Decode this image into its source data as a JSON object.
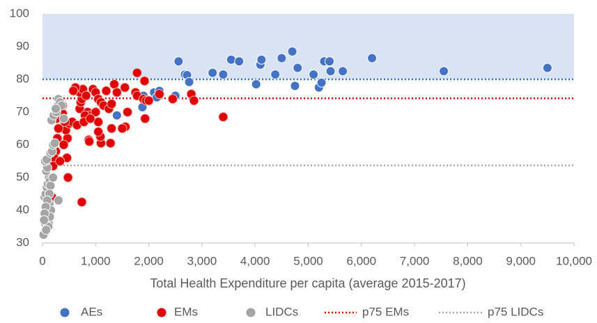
{
  "chart_data": {
    "type": "scatter",
    "x_label": "Total Health Expenditure per capita (average 2015-2017)",
    "xlim": [
      0,
      10000
    ],
    "xticks": [
      0,
      {
        "value": 1000,
        "label": "1,000"
      },
      {
        "value": 2000,
        "label": "2,000"
      },
      {
        "value": 3000,
        "label": "3,000"
      },
      {
        "value": 4000,
        "label": "4,000"
      },
      {
        "value": 5000,
        "label": "5,000"
      },
      {
        "value": 6000,
        "label": "6,000"
      },
      {
        "value": 7000,
        "label": "7,000"
      },
      {
        "value": 8000,
        "label": "8,000"
      },
      {
        "value": 9000,
        "label": "9,000"
      },
      {
        "value": 10000,
        "label": "10,000"
      }
    ],
    "ylim": [
      30,
      100
    ],
    "yticks": [
      30,
      40,
      50,
      60,
      70,
      80,
      90,
      100
    ],
    "shaded_band": {
      "range": [
        80,
        100
      ],
      "color": "#dae3f3",
      "edge_color": "#2f74c0"
    },
    "series": [
      {
        "name": "AEs",
        "color": "#4472c4",
        "x": [
          2560,
          2680,
          2720,
          2760,
          3200,
          3400,
          3550,
          3700,
          4020,
          4100,
          4120,
          4380,
          4500,
          4700,
          4750,
          4800,
          5100,
          5200,
          5250,
          5300,
          5400,
          5420,
          5650,
          6200,
          7550,
          9500,
          1400,
          1900,
          1880,
          2100,
          2150,
          2200,
          2500
        ],
        "values": [
          85.5,
          81.5,
          81.3,
          79.2,
          82,
          81.5,
          86,
          85.5,
          78.5,
          84.5,
          86,
          81.5,
          86.5,
          88.5,
          78,
          83.5,
          81.5,
          77.5,
          79,
          85.5,
          85.5,
          82.5,
          82.5,
          86.5,
          82.5,
          83.5,
          69,
          75,
          71.5,
          76,
          74.5,
          76.5,
          75
        ]
      },
      {
        "name": "EMs",
        "color": "#e00000",
        "x": [
          1780,
          1920,
          1750,
          1780,
          1900,
          1950,
          2000,
          1930,
          2200,
          2450,
          2800,
          2850,
          3400,
          1550,
          1600,
          1560,
          1500,
          1300,
          1280,
          1100,
          1090,
          1050,
          870,
          880,
          740,
          480,
          460,
          470,
          440,
          500,
          560,
          650,
          700,
          720,
          740,
          700,
          760,
          620,
          580,
          820,
          850,
          900,
          950,
          1000,
          1050,
          1100,
          1150,
          1200,
          1250,
          1300,
          1350,
          1400,
          1000,
          1050,
          800,
          780,
          900,
          350,
          380,
          300,
          280,
          250,
          220,
          200,
          330,
          400,
          150,
          120,
          180,
          260,
          300,
          420,
          380
        ],
        "values": [
          82,
          79.5,
          76,
          75,
          74,
          73.5,
          73.5,
          68,
          75.5,
          74,
          75.5,
          73.5,
          68.5,
          77.5,
          70,
          65.5,
          65,
          65,
          60.5,
          60.5,
          62.5,
          64,
          61.5,
          61,
          42.5,
          50,
          56,
          62,
          64.5,
          66.5,
          67,
          66,
          71,
          73,
          74,
          76,
          77,
          77.5,
          76.5,
          75,
          70,
          69,
          77,
          76,
          74,
          73,
          72,
          76.5,
          71,
          72.5,
          78.5,
          76,
          70,
          67,
          69,
          67,
          68,
          70,
          72,
          65,
          62,
          58,
          56,
          53.5,
          55,
          60,
          40,
          38,
          44,
          68,
          72,
          67,
          69.5
        ]
      },
      {
        "name": "LIDCs",
        "color": "#a5a5a5",
        "x": [
          20,
          50,
          60,
          80,
          100,
          120,
          70,
          90,
          110,
          130,
          40,
          60,
          80,
          100,
          120,
          140,
          70,
          90,
          50,
          80,
          150,
          180,
          200,
          230,
          170,
          210,
          260,
          300,
          330,
          360,
          300,
          150,
          130,
          160,
          140,
          110,
          70,
          200,
          90,
          60,
          40,
          30,
          250,
          400
        ],
        "values": [
          32.5,
          36,
          37,
          38,
          35.5,
          36,
          39,
          40,
          41,
          42,
          44,
          45,
          47,
          48,
          50,
          49,
          52,
          53,
          55,
          55.5,
          57.5,
          58,
          60,
          60.5,
          67.5,
          69,
          70,
          74,
          73,
          72,
          43,
          47.5,
          45,
          40,
          38,
          35,
          34,
          50,
          43,
          41,
          39,
          37,
          71,
          68
        ]
      }
    ],
    "reference_lines": [
      {
        "name": "p75 EMs",
        "color": "#e00000",
        "value": 74.2
      },
      {
        "name": "p75 LIDCs",
        "color": "#a5a5a5",
        "value": 53.7
      }
    ]
  }
}
